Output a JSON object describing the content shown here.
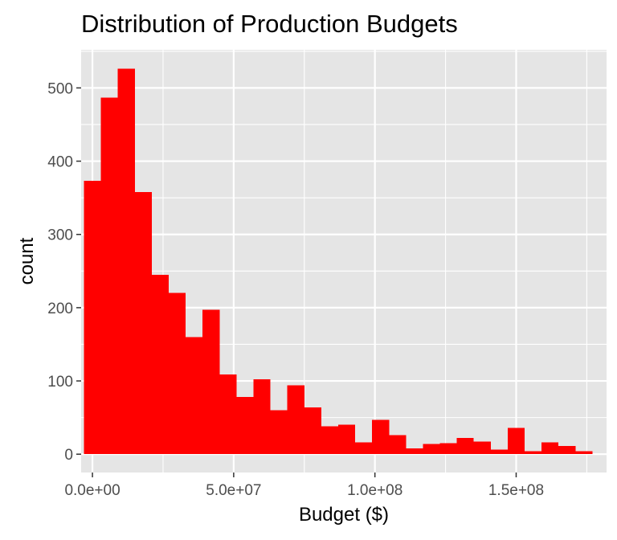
{
  "chart_data": {
    "type": "bar",
    "title": "Distribution of Production Budgets",
    "xlabel": "Budget ($)",
    "ylabel": "count",
    "xlim": [
      -4000000,
      182000000
    ],
    "ylim": [
      -25,
      552
    ],
    "x_ticks": [
      {
        "value": 0,
        "label": "0.0e+00"
      },
      {
        "value": 50000000,
        "label": "5.0e+07"
      },
      {
        "value": 100000000,
        "label": "1.0e+08"
      },
      {
        "value": 150000000,
        "label": "1.5e+08"
      }
    ],
    "y_ticks": [
      {
        "value": 0,
        "label": "0"
      },
      {
        "value": 100,
        "label": "100"
      },
      {
        "value": 200,
        "label": "200"
      },
      {
        "value": 300,
        "label": "300"
      },
      {
        "value": 400,
        "label": "400"
      },
      {
        "value": 500,
        "label": "500"
      }
    ],
    "bin_width": 6000000,
    "bin_starts": [
      -3000000,
      3000000,
      9000000,
      15000000,
      21000000,
      27000000,
      33000000,
      39000000,
      45000000,
      51000000,
      57000000,
      63000000,
      69000000,
      75000000,
      81000000,
      87000000,
      93000000,
      99000000,
      105000000,
      111000000,
      117000000,
      123000000,
      129000000,
      135000000,
      141000000,
      147000000,
      153000000,
      159000000,
      165000000,
      171000000
    ],
    "counts": [
      373,
      487,
      526,
      358,
      245,
      220,
      160,
      197,
      109,
      78,
      102,
      60,
      94,
      64,
      38,
      40,
      16,
      47,
      26,
      8,
      14,
      15,
      22,
      17,
      6,
      36,
      4,
      16,
      11,
      4
    ],
    "fill_color": "#ff0000",
    "panel_background": "#e5e5e5",
    "grid": true,
    "grid_color": "#ffffff",
    "legend": "none"
  }
}
